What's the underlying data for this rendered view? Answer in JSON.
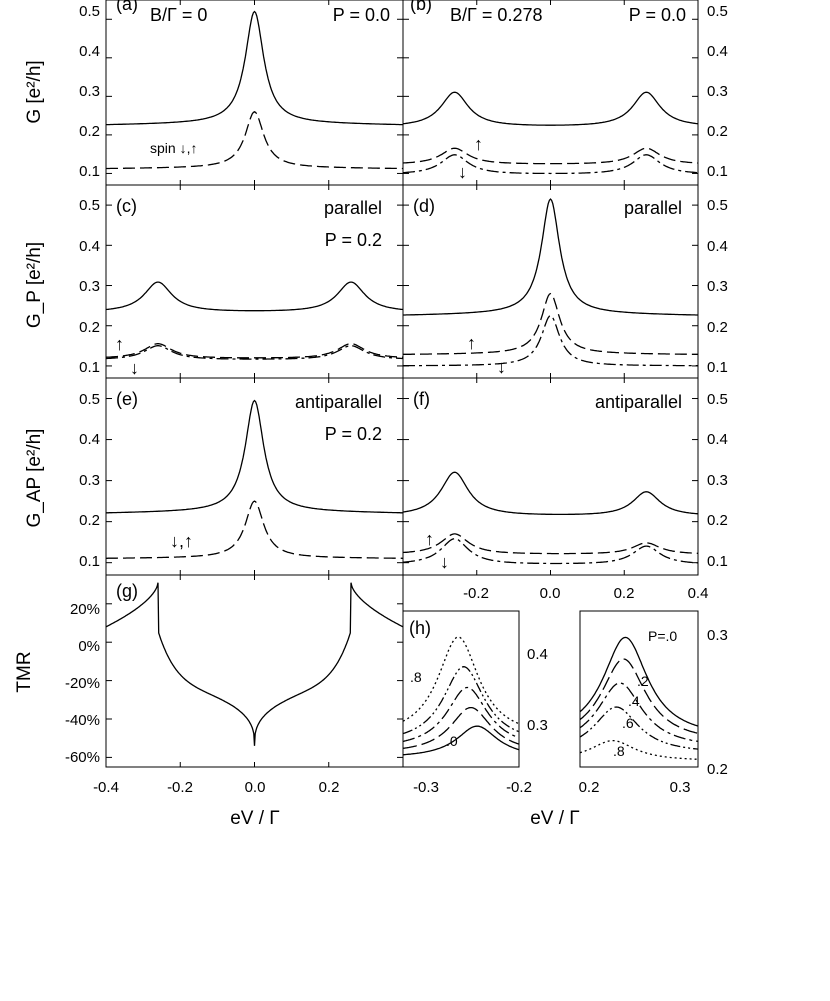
{
  "chart_data": [
    {
      "panel": "a",
      "type": "line",
      "panel_label": "(a)",
      "title_left": "B/Γ = 0",
      "title_right": "P = 0.0",
      "ylabel": "G [e²/h]",
      "xlim": [
        -0.4,
        0.4
      ],
      "ylim": [
        0.07,
        0.55
      ],
      "yticks": [
        "0.1",
        "0.2",
        "0.3",
        "0.4",
        "0.5"
      ],
      "series": [
        {
          "name": "total",
          "style": "solid",
          "peaks": [
            {
              "x": 0.0,
              "y": 0.52
            }
          ],
          "baseline_edge": 0.225,
          "baseline_mid": 0.23
        },
        {
          "name": "spin ↓,↑",
          "style": "dashed",
          "peaks": [
            {
              "x": 0.0,
              "y": 0.26
            }
          ],
          "baseline_edge": 0.112,
          "baseline_mid": 0.115
        }
      ],
      "annotations": [
        "spin ↓,↑"
      ]
    },
    {
      "panel": "b",
      "type": "line",
      "panel_label": "(b)",
      "title_left": "B/Γ = 0.278",
      "title_right": "P = 0.0",
      "xlim": [
        -0.4,
        0.4
      ],
      "ylim": [
        0.07,
        0.55
      ],
      "yticks": [
        "0.1",
        "0.2",
        "0.3",
        "0.4",
        "0.5"
      ],
      "series": [
        {
          "name": "total",
          "style": "solid",
          "peaks": [
            {
              "x": -0.26,
              "y": 0.31
            },
            {
              "x": 0.26,
              "y": 0.31
            }
          ],
          "baseline_mid": 0.22
        },
        {
          "name": "spin ↑",
          "style": "dashed",
          "peaks": [
            {
              "x": -0.26,
              "y": 0.165
            },
            {
              "x": 0.26,
              "y": 0.165
            }
          ],
          "baseline_mid": 0.123
        },
        {
          "name": "spin ↓",
          "style": "dash-dot",
          "peaks": [
            {
              "x": -0.26,
              "y": 0.148
            },
            {
              "x": 0.26,
              "y": 0.148
            }
          ],
          "baseline_mid": 0.097
        }
      ],
      "annotations": [
        "↑",
        "↓"
      ]
    },
    {
      "panel": "c",
      "type": "line",
      "panel_label": "(c)",
      "title_right": "parallel",
      "title_right2": "P = 0.2",
      "ylabel": "G_P [e²/h]",
      "xlim": [
        -0.4,
        0.4
      ],
      "ylim": [
        0.07,
        0.55
      ],
      "yticks": [
        "0.1",
        "0.2",
        "0.3",
        "0.4",
        "0.5"
      ],
      "series": [
        {
          "name": "total",
          "style": "solid",
          "peaks": [
            {
              "x": -0.26,
              "y": 0.308
            },
            {
              "x": 0.26,
              "y": 0.308
            }
          ],
          "baseline_mid": 0.233
        },
        {
          "name": "spin ↑",
          "style": "dashed",
          "peaks": [
            {
              "x": -0.26,
              "y": 0.155
            },
            {
              "x": 0.26,
              "y": 0.155
            }
          ],
          "baseline_mid": 0.118
        },
        {
          "name": "spin ↓",
          "style": "dash-dot",
          "peaks": [
            {
              "x": -0.26,
              "y": 0.15
            },
            {
              "x": 0.26,
              "y": 0.15
            }
          ],
          "baseline_mid": 0.115
        }
      ],
      "annotations": [
        "↑",
        "↓"
      ]
    },
    {
      "panel": "d",
      "type": "line",
      "panel_label": "(d)",
      "title_right": "parallel",
      "xlim": [
        -0.4,
        0.4
      ],
      "ylim": [
        0.07,
        0.55
      ],
      "yticks": [
        "0.1",
        "0.2",
        "0.3",
        "0.4",
        "0.5"
      ],
      "series": [
        {
          "name": "total",
          "style": "solid",
          "peaks": [
            {
              "x": 0.0,
              "y": 0.515
            }
          ],
          "baseline_edge": 0.225,
          "baseline_mid": 0.23
        },
        {
          "name": "spin ↑",
          "style": "dashed",
          "peaks": [
            {
              "x": 0.0,
              "y": 0.28
            }
          ],
          "baseline_edge": 0.128,
          "baseline_mid": 0.13
        },
        {
          "name": "spin ↓",
          "style": "dash-dot",
          "peaks": [
            {
              "x": 0.0,
              "y": 0.225
            }
          ],
          "baseline_edge": 0.1,
          "baseline_mid": 0.1
        }
      ],
      "annotations": [
        "↑",
        "↓"
      ]
    },
    {
      "panel": "e",
      "type": "line",
      "panel_label": "(e)",
      "title_right": "antiparallel",
      "title_right2": "P = 0.2",
      "ylabel": "G_AP [e²/h]",
      "xlim": [
        -0.4,
        0.4
      ],
      "ylim": [
        0.07,
        0.55
      ],
      "yticks": [
        "0.1",
        "0.2",
        "0.3",
        "0.4",
        "0.5"
      ],
      "series": [
        {
          "name": "total",
          "style": "solid",
          "peaks": [
            {
              "x": 0.0,
              "y": 0.495
            }
          ],
          "baseline_edge": 0.22,
          "baseline_mid": 0.225
        },
        {
          "name": "spin ↓,↑",
          "style": "dashed",
          "peaks": [
            {
              "x": 0.0,
              "y": 0.25
            }
          ],
          "baseline_edge": 0.11,
          "baseline_mid": 0.112
        }
      ],
      "annotations": [
        "↓,↑"
      ]
    },
    {
      "panel": "f",
      "type": "line",
      "panel_label": "(f)",
      "title_right": "antiparallel",
      "xlim": [
        -0.4,
        0.4
      ],
      "ylim": [
        0.07,
        0.55
      ],
      "xticks": [
        "-0.2",
        "0.0",
        "0.2",
        "0.4"
      ],
      "yticks": [
        "0.1",
        "0.2",
        "0.3",
        "0.4",
        "0.5"
      ],
      "series": [
        {
          "name": "total",
          "style": "solid",
          "peaks": [
            {
              "x": -0.26,
              "y": 0.32
            },
            {
              "x": 0.26,
              "y": 0.272
            }
          ],
          "baseline_mid": 0.213
        },
        {
          "name": "spin ↑",
          "style": "dashed",
          "peaks": [
            {
              "x": -0.26,
              "y": 0.17
            },
            {
              "x": 0.26,
              "y": 0.148
            }
          ],
          "baseline_mid": 0.12
        },
        {
          "name": "spin ↓",
          "style": "dash-dot",
          "peaks": [
            {
              "x": -0.26,
              "y": 0.158
            },
            {
              "x": 0.26,
              "y": 0.14
            }
          ],
          "baseline_mid": 0.095
        }
      ],
      "annotations": [
        "↑",
        "↓"
      ]
    },
    {
      "panel": "g",
      "type": "line",
      "panel_label": "(g)",
      "ylabel": "TMR",
      "xlabel": "eV / Γ",
      "xlim": [
        -0.4,
        0.4
      ],
      "ylim": [
        -0.65,
        0.35
      ],
      "xticks": [
        "-0.4",
        "-0.2",
        "0.0",
        "0.2"
      ],
      "yticks": [
        "20%",
        "0%",
        "-20%",
        "-40%",
        "-60%"
      ],
      "series": [
        {
          "name": "TMR",
          "style": "solid",
          "points": [
            [
              -0.4,
              0.08
            ],
            [
              -0.26,
              0.31
            ],
            [
              -0.15,
              0.01
            ],
            [
              -0.05,
              -0.22
            ],
            [
              0.0,
              -0.54
            ],
            [
              0.05,
              -0.22
            ],
            [
              0.15,
              0.01
            ],
            [
              0.26,
              0.31
            ],
            [
              0.4,
              0.08
            ]
          ]
        }
      ]
    },
    {
      "panel": "h",
      "type": "line",
      "panel_label": "(h)",
      "xlabel": "eV / Γ",
      "xlim_left": [
        -0.33,
        -0.2
      ],
      "xlim_right": [
        0.2,
        0.33
      ],
      "ylim_left": [
        0.25,
        0.46
      ],
      "ylim_right": [
        0.2,
        0.33
      ],
      "xticks_left": [
        "-0.3",
        "-0.2"
      ],
      "xticks_right": [
        "0.2",
        "0.3"
      ],
      "yticks_left": [
        "0.4",
        "0.3"
      ],
      "yticks_right": [
        "0.3",
        "0.2"
      ],
      "P_values": [
        0.0,
        0.2,
        0.4,
        0.6,
        0.8
      ],
      "labels_left": [
        ".8",
        ".0"
      ],
      "labels_right": [
        "P=.0",
        ".2",
        ".4",
        ".6",
        ".8"
      ],
      "series_left": [
        {
          "name": "P=0.0",
          "style": "solid",
          "peak_x": -0.247,
          "peak_y": 0.305
        },
        {
          "name": "P=0.2",
          "style": "long-dash",
          "peak_x": -0.254,
          "peak_y": 0.33
        },
        {
          "name": "P=0.4",
          "style": "dash-dot",
          "peak_x": -0.258,
          "peak_y": 0.357
        },
        {
          "name": "P=0.6",
          "style": "dash-dot-dot",
          "peak_x": -0.262,
          "peak_y": 0.385
        },
        {
          "name": "P=0.8",
          "style": "dotted",
          "peak_x": -0.268,
          "peak_y": 0.425
        }
      ],
      "series_right": [
        {
          "name": "P=0.0",
          "style": "solid",
          "peak_x": 0.25,
          "peak_y": 0.308
        },
        {
          "name": "P=0.2",
          "style": "long-dash",
          "peak_x": 0.248,
          "peak_y": 0.29
        },
        {
          "name": "P=0.4",
          "style": "dash-dot",
          "peak_x": 0.244,
          "peak_y": 0.27
        },
        {
          "name": "P=0.6",
          "style": "dash-dot-dot",
          "peak_x": 0.24,
          "peak_y": 0.25
        },
        {
          "name": "P=0.8",
          "style": "dotted",
          "peak_x": 0.236,
          "peak_y": 0.222
        }
      ]
    }
  ]
}
